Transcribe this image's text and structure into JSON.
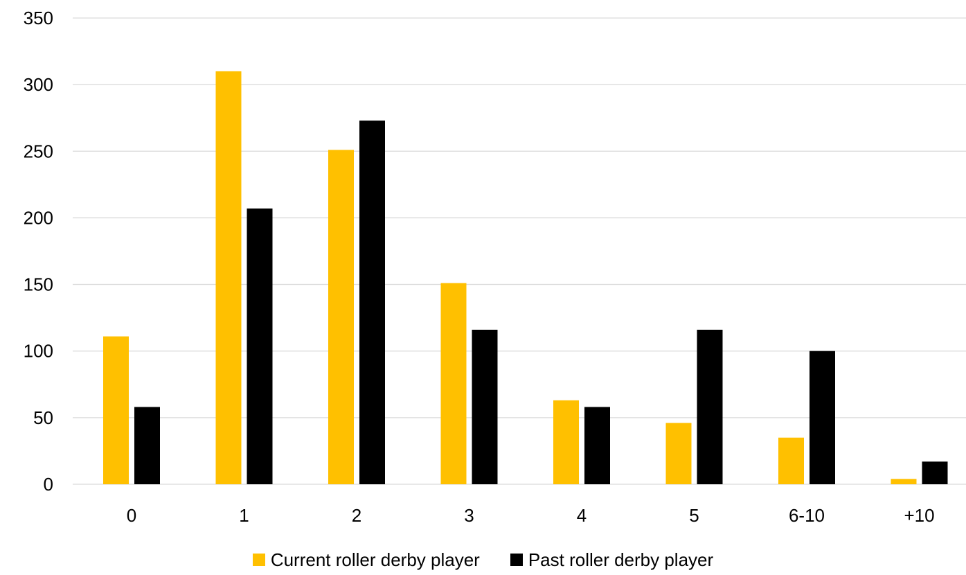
{
  "chart_data": {
    "type": "bar",
    "categories": [
      "0",
      "1",
      "2",
      "3",
      "4",
      "5",
      "6-10",
      "+10"
    ],
    "series": [
      {
        "name": "Current roller derby player",
        "color": "#ffc000",
        "values": [
          111,
          310,
          251,
          151,
          63,
          46,
          35,
          4
        ]
      },
      {
        "name": "Past roller derby player",
        "color": "#000000",
        "values": [
          58,
          207,
          273,
          116,
          58,
          116,
          100,
          17
        ]
      }
    ],
    "ylim": [
      0,
      350
    ],
    "yticks": [
      0,
      50,
      100,
      150,
      200,
      250,
      300,
      350
    ],
    "grid": true,
    "gridColor": "#d9d9d9",
    "legend": "bottom-center"
  }
}
